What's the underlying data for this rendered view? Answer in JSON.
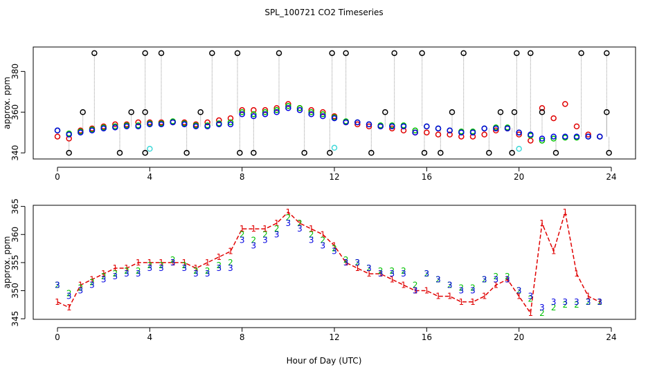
{
  "chart_data": [
    {
      "type": "scatter",
      "title": "SPL_100721  CO2 Timeseries",
      "ylabel": "approx. ppm",
      "xlim": [
        -1.05,
        25.05
      ],
      "xticks": [
        0,
        4,
        8,
        12,
        16,
        20,
        24
      ],
      "ylim": [
        337,
        392
      ],
      "yticks": [
        340,
        360,
        380
      ],
      "x": [
        0,
        0.5,
        1,
        1.5,
        2,
        2.5,
        3,
        3.5,
        4,
        4.5,
        5,
        5.5,
        6,
        6.5,
        7,
        7.5,
        8,
        8.5,
        9,
        9.5,
        10,
        10.5,
        11,
        11.5,
        12,
        12.5,
        13,
        13.5,
        14,
        14.5,
        15,
        15.5,
        16,
        16.5,
        17,
        17.5,
        18,
        18.5,
        19,
        19.5,
        20,
        20.5,
        21,
        21.5,
        22,
        22.5,
        23,
        23.5
      ],
      "series": [
        {
          "color": "#e00000",
          "values": [
            348,
            347,
            351,
            352,
            353,
            354,
            354,
            355,
            355,
            355,
            355,
            355,
            354,
            355,
            356,
            357,
            361,
            361,
            361,
            362,
            364,
            362,
            361,
            360,
            358,
            355,
            354,
            353,
            353,
            352,
            351,
            350,
            350,
            349,
            349,
            348,
            348,
            349,
            351,
            352,
            349,
            346,
            362,
            357,
            364,
            353,
            349,
            348
          ]
        },
        {
          "color": "#00c000",
          "values": [
            351,
            349.5,
            350.5,
            351.5,
            352.5,
            353,
            353.5,
            353.5,
            354.5,
            354.5,
            355.5,
            354.5,
            353.5,
            353.5,
            354.5,
            355,
            360,
            359,
            360,
            361,
            363,
            362,
            360,
            359,
            357.5,
            355.5,
            355,
            354,
            353.5,
            353.5,
            353.5,
            351,
            353,
            352,
            351,
            350.5,
            350.5,
            352,
            352.5,
            352.5,
            350,
            348.5,
            346,
            347,
            347.5,
            347.5,
            348,
            348
          ]
        },
        {
          "color": "#0000e0",
          "values": [
            351,
            349,
            350,
            351,
            352,
            352.5,
            353,
            353,
            354,
            354,
            355,
            354,
            353,
            353,
            354,
            354,
            359,
            358,
            359,
            360,
            362,
            361,
            359,
            358,
            357,
            355,
            355,
            354,
            353,
            353,
            353,
            350,
            353,
            352,
            351,
            350,
            350,
            352,
            352,
            352,
            350,
            349,
            347,
            348,
            348,
            348,
            348,
            348
          ]
        }
      ],
      "outliers": {
        "color": "#000000",
        "x": [
          0.5,
          1.1,
          1.6,
          2.7,
          3.2,
          3.8,
          3.8,
          3.8,
          4.5,
          5.6,
          6.2,
          6.7,
          7.8,
          7.9,
          8.5,
          9.6,
          10.7,
          11.8,
          11.9,
          12.5,
          13.6,
          14.2,
          14.6,
          15.8,
          15.9,
          16.6,
          17.1,
          17.6,
          18.7,
          19.2,
          19.7,
          19.8,
          19.9,
          20.5,
          21,
          21.6,
          22.7,
          23.8,
          23.8,
          23.9
        ],
        "values": [
          340,
          360,
          389,
          340,
          360,
          340,
          360,
          389,
          389,
          340,
          360,
          389,
          389,
          340,
          340,
          389,
          340,
          340,
          389,
          389,
          340,
          360,
          389,
          389,
          340,
          340,
          360,
          389,
          340,
          360,
          340,
          360,
          389,
          389,
          360,
          340,
          389,
          389,
          360,
          340
        ]
      },
      "flagged": {
        "color": "#40d8d8",
        "x": [
          4,
          12,
          20
        ],
        "values": [
          342,
          342.5,
          342
        ]
      }
    },
    {
      "type": "symbols",
      "ylabel": "approx. ppm",
      "xlabel": "Hour of Day (UTC)",
      "xlim": [
        -1.05,
        25.05
      ],
      "xticks": [
        0,
        4,
        8,
        12,
        16,
        20,
        24
      ],
      "ylim": [
        344.9,
        365.2
      ],
      "yticks": [
        345,
        350,
        355,
        360,
        365
      ],
      "x": [
        0,
        0.5,
        1,
        1.5,
        2,
        2.5,
        3,
        3.5,
        4,
        4.5,
        5,
        5.5,
        6,
        6.5,
        7,
        7.5,
        8,
        8.5,
        9,
        9.5,
        10,
        10.5,
        11,
        11.5,
        12,
        12.5,
        13,
        13.5,
        14,
        14.5,
        15,
        15.5,
        16,
        16.5,
        17,
        17.5,
        18,
        18.5,
        19,
        19.5,
        20,
        20.5,
        21,
        21.5,
        22,
        22.5,
        23,
        23.5
      ],
      "series": [
        {
          "symbol": "1",
          "color": "#e00000",
          "values": [
            348,
            347,
            351,
            352,
            353,
            354,
            354,
            355,
            355,
            355,
            355,
            355,
            354,
            355,
            356,
            357,
            361,
            361,
            361,
            362,
            364,
            362,
            361,
            360,
            358,
            355,
            354,
            353,
            353,
            352,
            351,
            350,
            350,
            349,
            349,
            348,
            348,
            349,
            351,
            352,
            349,
            346,
            362,
            357,
            364,
            353,
            349,
            348
          ]
        },
        {
          "symbol": "2",
          "color": "#00c000",
          "values": [
            351,
            349.5,
            350.5,
            351.5,
            352.5,
            353,
            353.5,
            353.5,
            354.5,
            354.5,
            355.5,
            354.5,
            353.5,
            353.5,
            354.5,
            355,
            360,
            359,
            360,
            361,
            363,
            362,
            360,
            359,
            357.5,
            355.5,
            355,
            354,
            353.5,
            353.5,
            353.5,
            351,
            353,
            352,
            351,
            350.5,
            350.5,
            352,
            352.5,
            352.5,
            350,
            348.5,
            346,
            347,
            347.5,
            347.5,
            348,
            348
          ]
        },
        {
          "symbol": "3",
          "color": "#0000e0",
          "values": [
            351,
            349,
            350,
            351,
            352,
            352.5,
            353,
            353,
            354,
            354,
            355,
            354,
            353,
            353,
            354,
            354,
            359,
            358,
            359,
            360,
            362,
            361,
            359,
            358,
            357,
            355,
            355,
            354,
            353,
            353,
            353,
            350,
            353,
            352,
            351,
            350,
            350,
            352,
            352,
            352,
            350,
            349,
            347,
            348,
            348,
            348,
            348,
            348
          ]
        }
      ]
    }
  ]
}
